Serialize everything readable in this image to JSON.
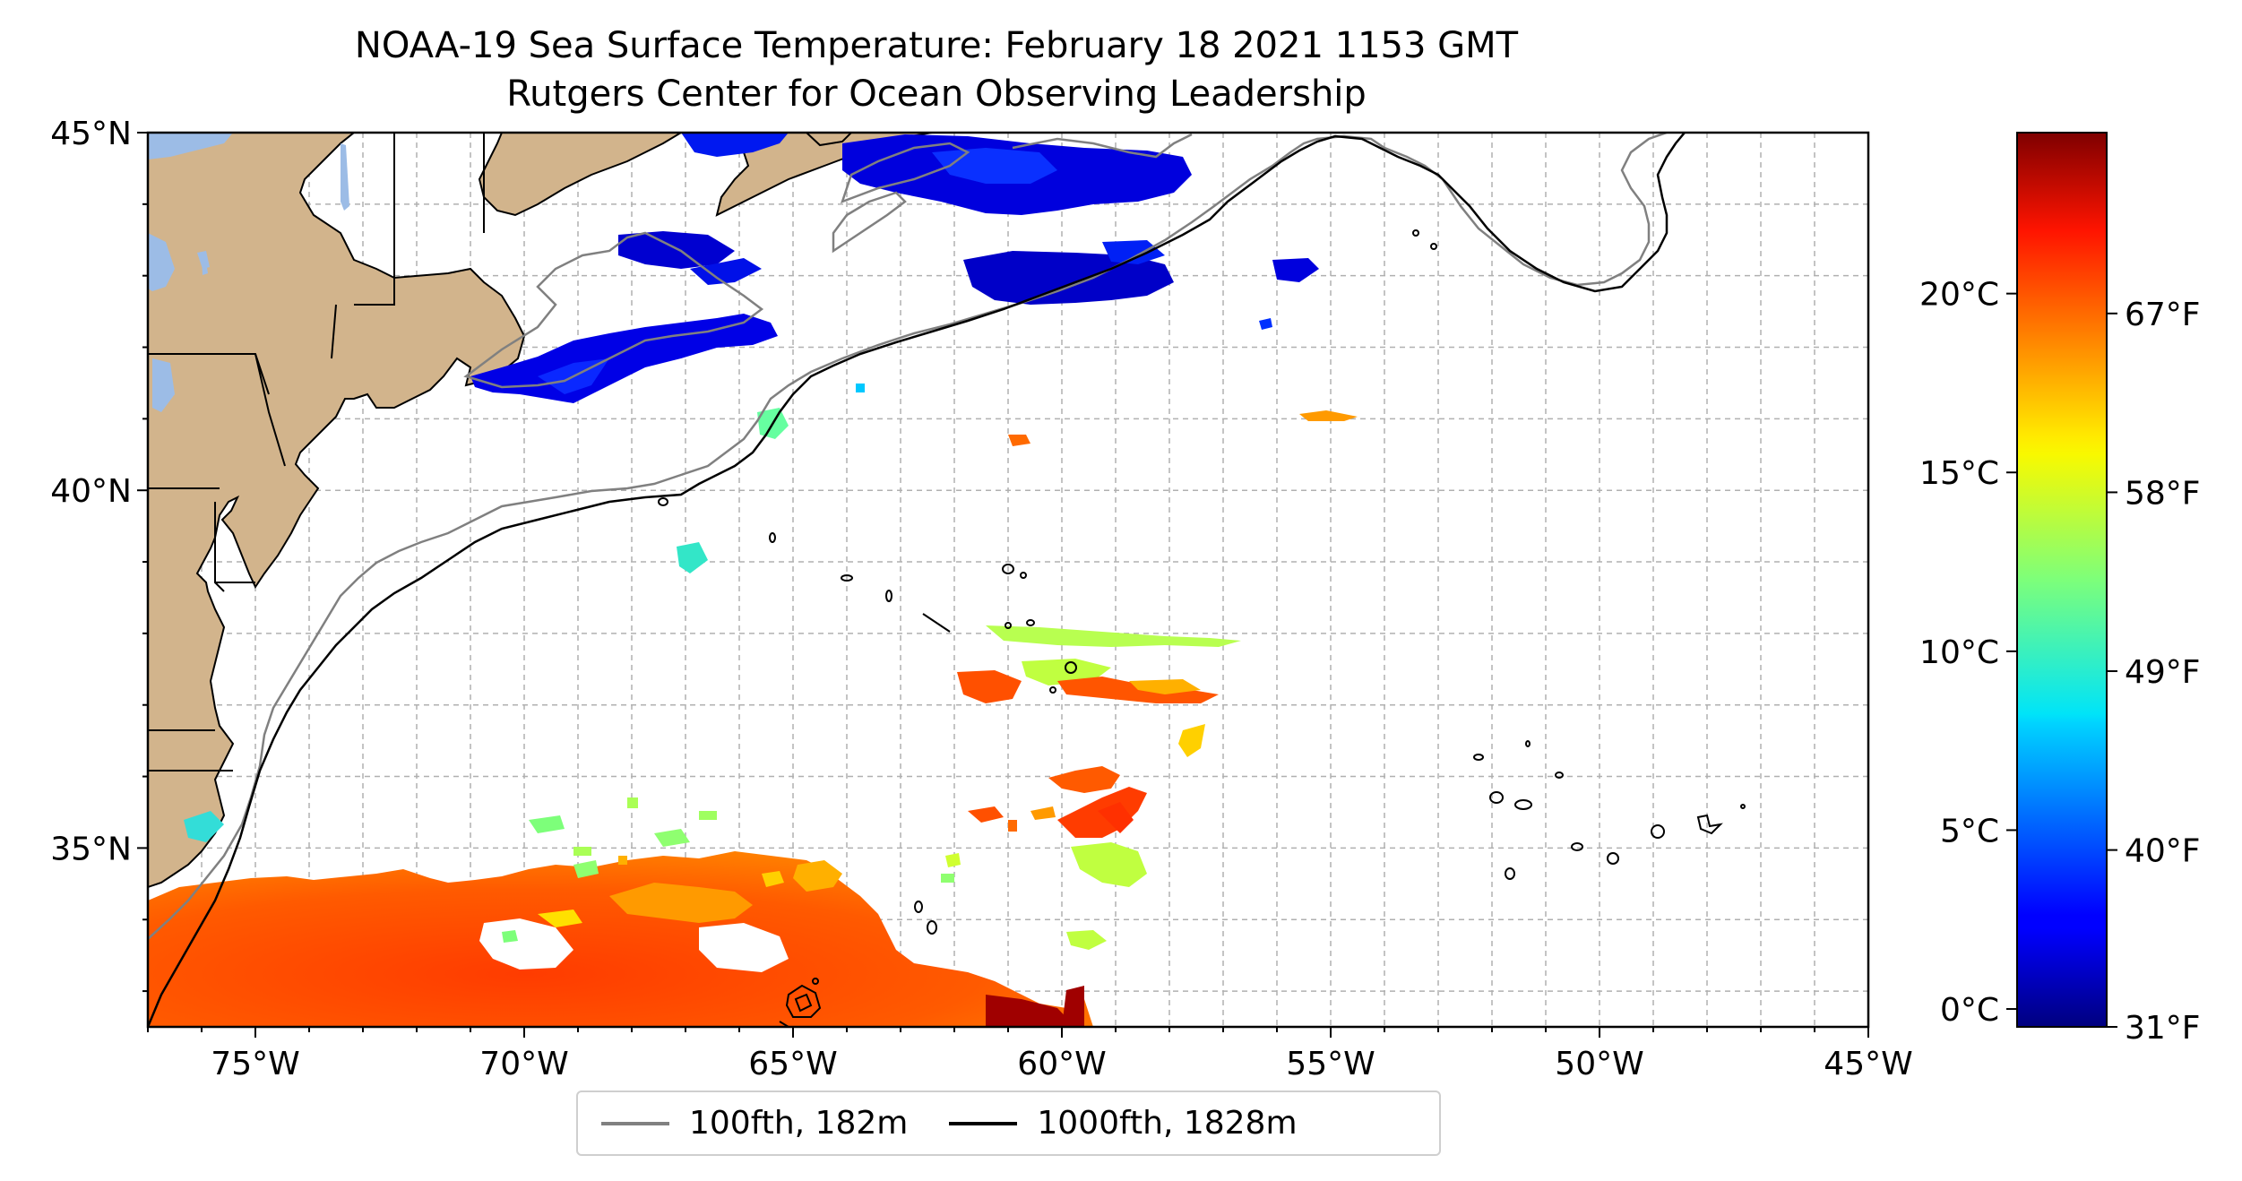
{
  "title": "NOAA-19 Sea Surface Temperature: February 18 2021 1153 GMT",
  "subtitle": "Rutgers Center for Ocean Observing Leadership",
  "map": {
    "lon_range": [
      -77,
      -45
    ],
    "lat_range": [
      32.5,
      45
    ],
    "x_ticks": [
      {
        "value": -75,
        "label": "75°W"
      },
      {
        "value": -70,
        "label": "70°W"
      },
      {
        "value": -65,
        "label": "65°W"
      },
      {
        "value": -60,
        "label": "60°W"
      },
      {
        "value": -55,
        "label": "55°W"
      },
      {
        "value": -50,
        "label": "50°W"
      },
      {
        "value": -45,
        "label": "45°W"
      }
    ],
    "y_ticks": [
      {
        "value": 45,
        "label": "45°N"
      },
      {
        "value": 40,
        "label": "40°N"
      },
      {
        "value": 35,
        "label": "35°N"
      }
    ],
    "gridlines": true,
    "colors": {
      "land": "#d2b48c",
      "lakes": "#9cbce6",
      "isobath_100": "#808080",
      "isobath_1000": "#000000"
    }
  },
  "colorbar": {
    "colormap": "jet",
    "range_c": [
      -0.5,
      24.5
    ],
    "celsius_ticks": [
      {
        "value": 0,
        "label": "0°C"
      },
      {
        "value": 5,
        "label": "5°C"
      },
      {
        "value": 10,
        "label": "10°C"
      },
      {
        "value": 15,
        "label": "15°C"
      },
      {
        "value": 20,
        "label": "20°C"
      }
    ],
    "fahrenheit_ticks": [
      {
        "value": 31,
        "label": "31°F"
      },
      {
        "value": 40,
        "label": "40°F"
      },
      {
        "value": 49,
        "label": "49°F"
      },
      {
        "value": 58,
        "label": "58°F"
      },
      {
        "value": 67,
        "label": "67°F"
      }
    ]
  },
  "legend": {
    "items": [
      {
        "label": "100fth, 182m",
        "color": "#808080"
      },
      {
        "label": "1000fth, 1828m",
        "color": "#000000"
      }
    ]
  }
}
